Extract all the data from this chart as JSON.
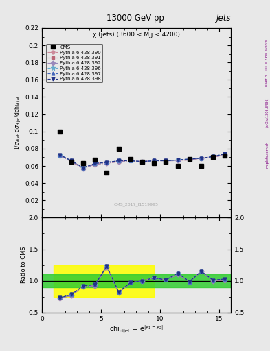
{
  "title_top": "13000 GeV pp",
  "title_right": "Jets",
  "subtitle": "χ (jets) (3600 < Mjj < 4200)",
  "ylabel_main": "1/σ_{dijet} dσ_{dijet}/dchi_{dijet}",
  "ylabel_ratio": "Ratio to CMS",
  "xlabel": "chi$_{dijet}$ = e$^{|y_1 - y_2|}$",
  "watermark": "CMS_2017_I1519995",
  "rivet_text": "Rivet 3.1.10, ≥ 2.6M events",
  "arxiv_text": "[arXiv:1306.3436]",
  "mcplots_text": "mcplots.cern.ch",
  "cms_x": [
    1.5,
    2.5,
    3.5,
    4.5,
    5.5,
    6.5,
    7.5,
    8.5,
    9.5,
    10.5,
    11.5,
    12.5,
    13.5,
    14.5,
    15.5
  ],
  "cms_y": [
    0.1,
    0.065,
    0.063,
    0.067,
    0.052,
    0.08,
    0.068,
    0.065,
    0.063,
    0.065,
    0.06,
    0.068,
    0.06,
    0.07,
    0.072
  ],
  "pythia_x": [
    1.5,
    2.5,
    3.5,
    4.5,
    5.5,
    6.5,
    7.5,
    8.5,
    9.5,
    10.5,
    11.5,
    12.5,
    13.5,
    14.5,
    15.5
  ],
  "p390_y": [
    0.072,
    0.066,
    0.057,
    0.063,
    0.064,
    0.065,
    0.066,
    0.065,
    0.066,
    0.066,
    0.066,
    0.067,
    0.069,
    0.07,
    0.073
  ],
  "p391_y": [
    0.072,
    0.065,
    0.057,
    0.062,
    0.063,
    0.065,
    0.066,
    0.065,
    0.066,
    0.066,
    0.066,
    0.067,
    0.069,
    0.07,
    0.073
  ],
  "p392_y": [
    0.072,
    0.065,
    0.057,
    0.062,
    0.063,
    0.065,
    0.066,
    0.065,
    0.066,
    0.066,
    0.066,
    0.067,
    0.069,
    0.07,
    0.073
  ],
  "p396_y": [
    0.073,
    0.066,
    0.058,
    0.063,
    0.064,
    0.066,
    0.066,
    0.065,
    0.066,
    0.066,
    0.067,
    0.068,
    0.069,
    0.071,
    0.074
  ],
  "p397_y": [
    0.073,
    0.066,
    0.058,
    0.063,
    0.064,
    0.066,
    0.066,
    0.065,
    0.066,
    0.066,
    0.067,
    0.068,
    0.069,
    0.071,
    0.074
  ],
  "p398_y": [
    0.073,
    0.066,
    0.058,
    0.063,
    0.064,
    0.066,
    0.066,
    0.065,
    0.066,
    0.066,
    0.067,
    0.068,
    0.069,
    0.071,
    0.074
  ],
  "ratio_390": [
    0.72,
    0.77,
    0.905,
    0.94,
    1.23,
    0.81,
    0.97,
    1.0,
    1.048,
    1.015,
    1.1,
    0.99,
    1.15,
    1.0,
    1.01
  ],
  "ratio_391": [
    0.72,
    0.77,
    0.905,
    0.925,
    1.21,
    0.813,
    0.97,
    1.0,
    1.048,
    1.015,
    1.1,
    0.99,
    1.15,
    1.0,
    1.01
  ],
  "ratio_392": [
    0.72,
    0.77,
    0.905,
    0.925,
    1.21,
    0.813,
    0.97,
    1.0,
    1.048,
    1.015,
    1.1,
    0.99,
    1.15,
    1.0,
    1.01
  ],
  "ratio_396": [
    0.73,
    0.785,
    0.92,
    0.94,
    1.23,
    0.825,
    0.97,
    1.0,
    1.048,
    1.015,
    1.12,
    0.99,
    1.15,
    1.01,
    1.03
  ],
  "ratio_397": [
    0.73,
    0.785,
    0.92,
    0.94,
    1.23,
    0.825,
    0.97,
    1.0,
    1.048,
    1.015,
    1.12,
    0.99,
    1.15,
    1.01,
    1.03
  ],
  "ratio_398": [
    0.73,
    0.785,
    0.92,
    0.94,
    1.23,
    0.825,
    0.97,
    1.0,
    1.048,
    1.015,
    1.12,
    0.99,
    1.15,
    1.01,
    1.03
  ],
  "green_band_lo": 0.9,
  "green_band_hi": 1.1,
  "yellow_band_lo": 0.75,
  "yellow_band_hi": 1.25,
  "yellow_band_xmax": 9.5,
  "ylim_main": [
    0.0,
    0.22
  ],
  "ylim_ratio": [
    0.5,
    2.0
  ],
  "xlim": [
    1,
    16
  ],
  "bg_color": "#e8e8e8",
  "colors": {
    "p390": "#cc8899",
    "p391": "#bb6677",
    "p392": "#9988bb",
    "p396": "#66aacc",
    "p397": "#4466bb",
    "p398": "#223388"
  },
  "markers": {
    "p390": "o",
    "p391": "s",
    "p392": "D",
    "p396": "*",
    "p397": "^",
    "p398": "v"
  },
  "linestyles": [
    "-.",
    "-.",
    "-.",
    "--",
    "--",
    "--"
  ]
}
